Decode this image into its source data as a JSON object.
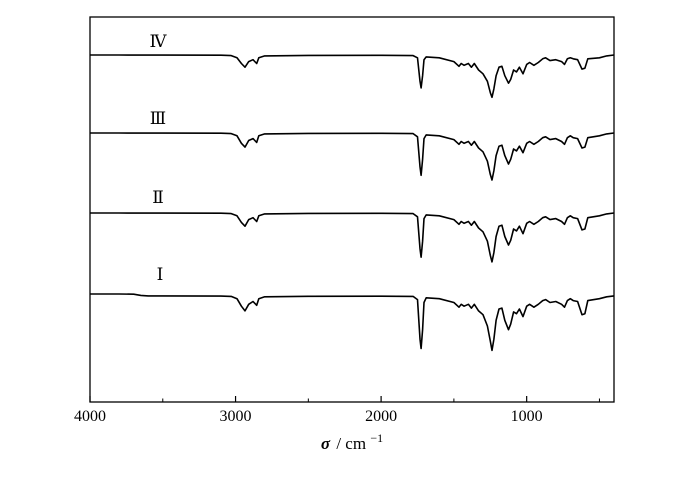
{
  "chart_data": {
    "type": "line",
    "title": "",
    "xlabel_symbol": "σ",
    "xlabel_unit": "/ cm",
    "xlabel_exponent": "−1",
    "x_reversed": true,
    "xlim": [
      4000,
      400
    ],
    "x_ticks": [
      4000,
      3000,
      2000,
      1000
    ],
    "x_tick_labels": [
      "4000",
      "3000",
      "2000",
      "1000"
    ],
    "y_ticks_shown": false,
    "grid": false,
    "legend": "inline labels above each trace",
    "series": [
      {
        "name": "Ⅳ",
        "points": [
          [
            4000,
            0
          ],
          [
            3800,
            0
          ],
          [
            3500,
            0.1
          ],
          [
            3100,
            0.2
          ],
          [
            3030,
            0.6
          ],
          [
            2990,
            3
          ],
          [
            2960,
            9
          ],
          [
            2935,
            13
          ],
          [
            2910,
            7
          ],
          [
            2880,
            5
          ],
          [
            2855,
            9
          ],
          [
            2840,
            3
          ],
          [
            2800,
            1
          ],
          [
            2500,
            0.4
          ],
          [
            2000,
            0.3
          ],
          [
            1780,
            0.6
          ],
          [
            1750,
            3
          ],
          [
            1733,
            28
          ],
          [
            1725,
            35
          ],
          [
            1715,
            22
          ],
          [
            1705,
            5
          ],
          [
            1690,
            2
          ],
          [
            1600,
            3
          ],
          [
            1500,
            7
          ],
          [
            1465,
            12
          ],
          [
            1450,
            9
          ],
          [
            1430,
            11
          ],
          [
            1400,
            9
          ],
          [
            1380,
            13
          ],
          [
            1360,
            9
          ],
          [
            1330,
            16
          ],
          [
            1300,
            20
          ],
          [
            1270,
            28
          ],
          [
            1250,
            40
          ],
          [
            1238,
            45
          ],
          [
            1225,
            36
          ],
          [
            1210,
            22
          ],
          [
            1190,
            13
          ],
          [
            1170,
            12
          ],
          [
            1150,
            22
          ],
          [
            1125,
            30
          ],
          [
            1110,
            26
          ],
          [
            1090,
            16
          ],
          [
            1070,
            18
          ],
          [
            1050,
            13
          ],
          [
            1025,
            20
          ],
          [
            1000,
            10
          ],
          [
            980,
            8
          ],
          [
            950,
            11
          ],
          [
            920,
            8
          ],
          [
            890,
            4
          ],
          [
            870,
            3
          ],
          [
            840,
            6
          ],
          [
            800,
            5
          ],
          [
            760,
            7
          ],
          [
            740,
            10
          ],
          [
            720,
            4
          ],
          [
            700,
            3
          ],
          [
            680,
            4
          ],
          [
            650,
            5
          ],
          [
            620,
            15
          ],
          [
            600,
            14
          ],
          [
            580,
            4
          ],
          [
            500,
            3
          ],
          [
            450,
            1
          ],
          [
            400,
            0
          ]
        ]
      },
      {
        "name": "Ⅲ",
        "points": [
          [
            4000,
            0
          ],
          [
            3800,
            0
          ],
          [
            3500,
            0.1
          ],
          [
            3100,
            0.2
          ],
          [
            3030,
            0.6
          ],
          [
            2990,
            3
          ],
          [
            2960,
            11
          ],
          [
            2935,
            15
          ],
          [
            2910,
            8
          ],
          [
            2880,
            6
          ],
          [
            2855,
            10
          ],
          [
            2840,
            3
          ],
          [
            2800,
            1
          ],
          [
            2500,
            0.4
          ],
          [
            2000,
            0.3
          ],
          [
            1780,
            0.6
          ],
          [
            1750,
            4
          ],
          [
            1733,
            36
          ],
          [
            1725,
            45
          ],
          [
            1715,
            28
          ],
          [
            1705,
            6
          ],
          [
            1690,
            2
          ],
          [
            1600,
            3
          ],
          [
            1500,
            7
          ],
          [
            1465,
            12
          ],
          [
            1450,
            9
          ],
          [
            1430,
            11
          ],
          [
            1400,
            9
          ],
          [
            1380,
            13
          ],
          [
            1360,
            9
          ],
          [
            1330,
            16
          ],
          [
            1300,
            20
          ],
          [
            1270,
            30
          ],
          [
            1250,
            44
          ],
          [
            1238,
            50
          ],
          [
            1225,
            40
          ],
          [
            1210,
            24
          ],
          [
            1190,
            14
          ],
          [
            1170,
            13
          ],
          [
            1150,
            24
          ],
          [
            1125,
            33
          ],
          [
            1110,
            28
          ],
          [
            1090,
            17
          ],
          [
            1070,
            19
          ],
          [
            1050,
            14
          ],
          [
            1025,
            21
          ],
          [
            1000,
            11
          ],
          [
            980,
            9
          ],
          [
            950,
            12
          ],
          [
            920,
            9
          ],
          [
            890,
            5
          ],
          [
            870,
            4
          ],
          [
            840,
            7
          ],
          [
            800,
            6
          ],
          [
            760,
            9
          ],
          [
            740,
            12
          ],
          [
            720,
            5
          ],
          [
            700,
            3
          ],
          [
            680,
            5
          ],
          [
            650,
            6
          ],
          [
            620,
            16
          ],
          [
            600,
            15
          ],
          [
            580,
            5
          ],
          [
            500,
            3
          ],
          [
            450,
            1
          ],
          [
            400,
            0
          ]
        ]
      },
      {
        "name": "Ⅱ",
        "points": [
          [
            4000,
            0
          ],
          [
            3800,
            0
          ],
          [
            3500,
            0.1
          ],
          [
            3100,
            0.2
          ],
          [
            3030,
            0.6
          ],
          [
            2990,
            3
          ],
          [
            2960,
            10
          ],
          [
            2935,
            14
          ],
          [
            2910,
            7
          ],
          [
            2880,
            5
          ],
          [
            2855,
            9
          ],
          [
            2840,
            3
          ],
          [
            2800,
            1
          ],
          [
            2500,
            0.4
          ],
          [
            2000,
            0.3
          ],
          [
            1780,
            0.6
          ],
          [
            1750,
            4
          ],
          [
            1733,
            38
          ],
          [
            1725,
            47
          ],
          [
            1715,
            30
          ],
          [
            1705,
            6
          ],
          [
            1690,
            2
          ],
          [
            1600,
            3
          ],
          [
            1500,
            7
          ],
          [
            1465,
            12
          ],
          [
            1450,
            9
          ],
          [
            1430,
            11
          ],
          [
            1400,
            9
          ],
          [
            1380,
            13
          ],
          [
            1360,
            9
          ],
          [
            1330,
            16
          ],
          [
            1300,
            20
          ],
          [
            1270,
            30
          ],
          [
            1250,
            45
          ],
          [
            1238,
            52
          ],
          [
            1225,
            42
          ],
          [
            1210,
            25
          ],
          [
            1190,
            14
          ],
          [
            1170,
            13
          ],
          [
            1150,
            25
          ],
          [
            1125,
            34
          ],
          [
            1110,
            29
          ],
          [
            1090,
            17
          ],
          [
            1070,
            19
          ],
          [
            1050,
            14
          ],
          [
            1025,
            22
          ],
          [
            1000,
            11
          ],
          [
            980,
            9
          ],
          [
            950,
            12
          ],
          [
            920,
            9
          ],
          [
            890,
            5
          ],
          [
            870,
            4
          ],
          [
            840,
            7
          ],
          [
            800,
            6
          ],
          [
            760,
            9
          ],
          [
            740,
            12
          ],
          [
            720,
            5
          ],
          [
            700,
            3
          ],
          [
            680,
            5
          ],
          [
            650,
            6
          ],
          [
            620,
            18
          ],
          [
            600,
            17
          ],
          [
            580,
            5
          ],
          [
            500,
            3
          ],
          [
            450,
            1
          ],
          [
            400,
            0
          ]
        ]
      },
      {
        "name": "Ⅰ",
        "points": [
          [
            4000,
            0
          ],
          [
            3800,
            0
          ],
          [
            3700,
            0.2
          ],
          [
            3650,
            1.5
          ],
          [
            3600,
            2
          ],
          [
            3500,
            2
          ],
          [
            3100,
            2.2
          ],
          [
            3030,
            2.6
          ],
          [
            2990,
            5
          ],
          [
            2960,
            13
          ],
          [
            2935,
            18
          ],
          [
            2910,
            11
          ],
          [
            2880,
            8
          ],
          [
            2855,
            12
          ],
          [
            2840,
            5
          ],
          [
            2800,
            3
          ],
          [
            2500,
            2.4
          ],
          [
            2000,
            2.3
          ],
          [
            1780,
            2.6
          ],
          [
            1750,
            6
          ],
          [
            1733,
            48
          ],
          [
            1725,
            58
          ],
          [
            1715,
            38
          ],
          [
            1705,
            9
          ],
          [
            1690,
            4
          ],
          [
            1600,
            5
          ],
          [
            1500,
            9
          ],
          [
            1465,
            14
          ],
          [
            1450,
            11
          ],
          [
            1430,
            13
          ],
          [
            1400,
            11
          ],
          [
            1380,
            15
          ],
          [
            1360,
            11
          ],
          [
            1330,
            18
          ],
          [
            1300,
            22
          ],
          [
            1270,
            34
          ],
          [
            1250,
            50
          ],
          [
            1238,
            60
          ],
          [
            1225,
            48
          ],
          [
            1210,
            28
          ],
          [
            1190,
            16
          ],
          [
            1170,
            15
          ],
          [
            1150,
            28
          ],
          [
            1125,
            38
          ],
          [
            1110,
            32
          ],
          [
            1090,
            19
          ],
          [
            1070,
            21
          ],
          [
            1050,
            16
          ],
          [
            1025,
            24
          ],
          [
            1000,
            13
          ],
          [
            980,
            11
          ],
          [
            950,
            14
          ],
          [
            920,
            11
          ],
          [
            890,
            7
          ],
          [
            870,
            6
          ],
          [
            840,
            9
          ],
          [
            800,
            8
          ],
          [
            760,
            11
          ],
          [
            740,
            14
          ],
          [
            720,
            7
          ],
          [
            700,
            5
          ],
          [
            680,
            7
          ],
          [
            650,
            8
          ],
          [
            620,
            22
          ],
          [
            600,
            21
          ],
          [
            580,
            7
          ],
          [
            500,
            5
          ],
          [
            450,
            3
          ],
          [
            400,
            2
          ]
        ]
      }
    ]
  }
}
